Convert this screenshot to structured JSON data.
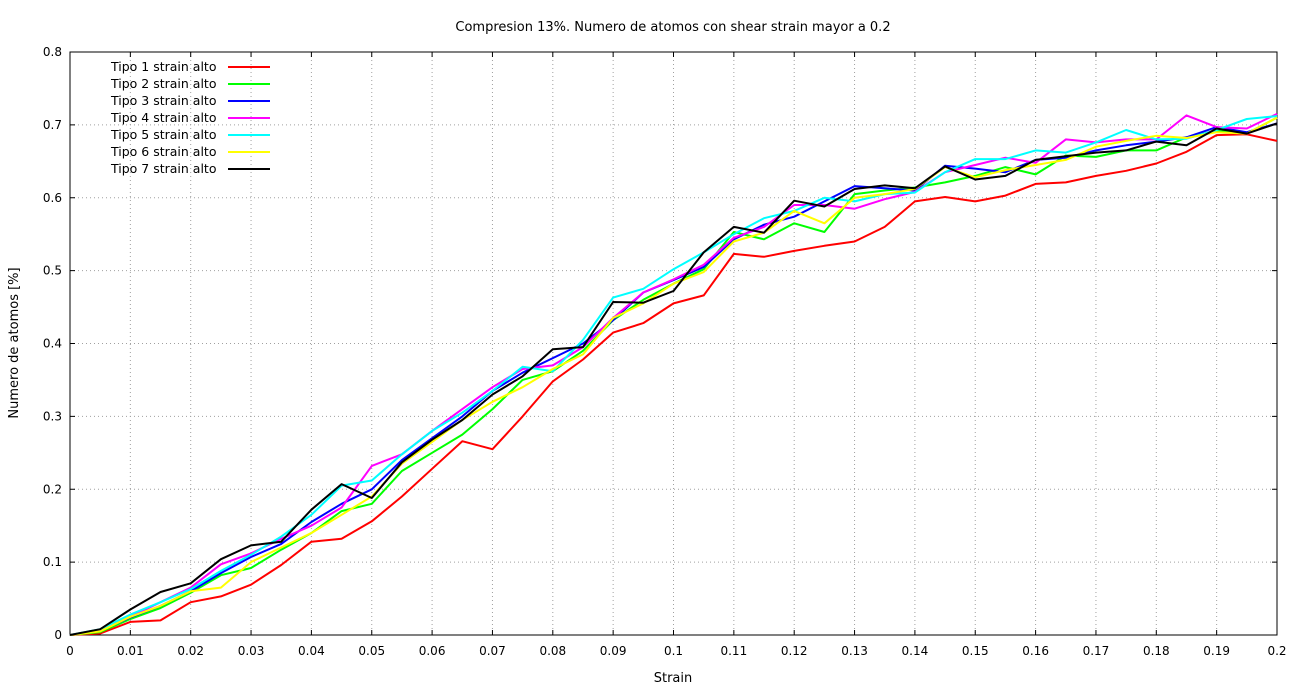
{
  "chart_data": {
    "type": "line",
    "title": "Compresion 13%. Numero de atomos con shear strain mayor a 0.2",
    "xlabel": "Strain",
    "ylabel": "Numero de atomos [%]",
    "xlim": [
      0,
      0.2
    ],
    "ylim": [
      0,
      0.8
    ],
    "grid": true,
    "legend_position": "top-left",
    "x_ticks": [
      "0",
      "0.01",
      "0.02",
      "0.03",
      "0.04",
      "0.05",
      "0.06",
      "0.07",
      "0.08",
      "0.09",
      "0.1",
      "0.11",
      "0.12",
      "0.13",
      "0.14",
      "0.15",
      "0.16",
      "0.17",
      "0.18",
      "0.19",
      "0.2"
    ],
    "y_ticks": [
      "0",
      "0.1",
      "0.2",
      "0.3",
      "0.4",
      "0.5",
      "0.6",
      "0.7",
      "0.8"
    ],
    "x": [
      0,
      0.005,
      0.01,
      0.015,
      0.02,
      0.025,
      0.03,
      0.035,
      0.04,
      0.045,
      0.05,
      0.055,
      0.06,
      0.065,
      0.07,
      0.075,
      0.08,
      0.085,
      0.09,
      0.095,
      0.1,
      0.105,
      0.11,
      0.115,
      0.12,
      0.125,
      0.13,
      0.135,
      0.14,
      0.145,
      0.15,
      0.155,
      0.16,
      0.165,
      0.17,
      0.175,
      0.18,
      0.185,
      0.19,
      0.195,
      0.2
    ],
    "series": [
      {
        "name": "Tipo 1 strain alto",
        "color": "#ff0000",
        "values": [
          0,
          0.002,
          0.018,
          0.02,
          0.045,
          0.053,
          0.069,
          0.096,
          0.128,
          0.132,
          0.156,
          0.19,
          0.228,
          0.266,
          0.255,
          0.3,
          0.348,
          0.378,
          0.415,
          0.428,
          0.455,
          0.466,
          0.523,
          0.519,
          0.527,
          0.534,
          0.54,
          0.56,
          0.595,
          0.601,
          0.595,
          0.603,
          0.619,
          0.621,
          0.63,
          0.637,
          0.647,
          0.663,
          0.686,
          0.687,
          0.678
        ]
      },
      {
        "name": "Tipo 2 strain alto",
        "color": "#00ff00",
        "values": [
          0,
          0.004,
          0.022,
          0.037,
          0.058,
          0.082,
          0.092,
          0.117,
          0.14,
          0.17,
          0.18,
          0.225,
          0.25,
          0.275,
          0.31,
          0.35,
          0.362,
          0.39,
          0.432,
          0.46,
          0.482,
          0.502,
          0.553,
          0.543,
          0.565,
          0.553,
          0.605,
          0.61,
          0.614,
          0.621,
          0.63,
          0.642,
          0.632,
          0.658,
          0.656,
          0.665,
          0.665,
          0.683,
          0.692,
          0.688,
          0.71
        ]
      },
      {
        "name": "Tipo 3 strain alto",
        "color": "#0000ff",
        "values": [
          0,
          0.006,
          0.024,
          0.04,
          0.06,
          0.085,
          0.107,
          0.125,
          0.155,
          0.18,
          0.2,
          0.24,
          0.27,
          0.3,
          0.335,
          0.36,
          0.38,
          0.4,
          0.432,
          0.47,
          0.487,
          0.505,
          0.543,
          0.563,
          0.574,
          0.595,
          0.616,
          0.613,
          0.61,
          0.644,
          0.64,
          0.635,
          0.652,
          0.655,
          0.665,
          0.672,
          0.677,
          0.683,
          0.697,
          0.69,
          0.702
        ]
      },
      {
        "name": "Tipo 4 strain alto",
        "color": "#ff00ff",
        "values": [
          0,
          0.006,
          0.025,
          0.045,
          0.065,
          0.097,
          0.112,
          0.132,
          0.15,
          0.175,
          0.232,
          0.248,
          0.28,
          0.31,
          0.34,
          0.365,
          0.37,
          0.395,
          0.435,
          0.47,
          0.488,
          0.508,
          0.545,
          0.56,
          0.59,
          0.59,
          0.585,
          0.598,
          0.608,
          0.635,
          0.645,
          0.655,
          0.648,
          0.68,
          0.676,
          0.68,
          0.68,
          0.713,
          0.697,
          0.695,
          0.715
        ]
      },
      {
        "name": "Tipo 5 strain alto",
        "color": "#00ffff",
        "values": [
          0,
          0.008,
          0.028,
          0.045,
          0.063,
          0.088,
          0.11,
          0.135,
          0.165,
          0.205,
          0.212,
          0.248,
          0.28,
          0.305,
          0.335,
          0.368,
          0.362,
          0.405,
          0.463,
          0.475,
          0.502,
          0.525,
          0.55,
          0.572,
          0.582,
          0.6,
          0.595,
          0.605,
          0.607,
          0.635,
          0.653,
          0.653,
          0.665,
          0.662,
          0.676,
          0.693,
          0.68,
          0.681,
          0.693,
          0.708,
          0.712
        ]
      },
      {
        "name": "Tipo 6 strain alto",
        "color": "#ffff00",
        "values": [
          0,
          0.005,
          0.025,
          0.04,
          0.06,
          0.065,
          0.1,
          0.12,
          0.14,
          0.165,
          0.19,
          0.235,
          0.265,
          0.295,
          0.32,
          0.34,
          0.365,
          0.385,
          0.435,
          0.455,
          0.482,
          0.498,
          0.54,
          0.552,
          0.582,
          0.565,
          0.6,
          0.605,
          0.612,
          0.642,
          0.628,
          0.638,
          0.645,
          0.652,
          0.67,
          0.678,
          0.685,
          0.682,
          0.69,
          0.688,
          0.71
        ]
      },
      {
        "name": "Tipo 7 strain alto",
        "color": "#000000",
        "values": [
          0,
          0.008,
          0.035,
          0.059,
          0.071,
          0.104,
          0.123,
          0.128,
          0.172,
          0.207,
          0.188,
          0.237,
          0.268,
          0.295,
          0.33,
          0.355,
          0.392,
          0.395,
          0.457,
          0.456,
          0.472,
          0.525,
          0.56,
          0.552,
          0.596,
          0.588,
          0.612,
          0.617,
          0.613,
          0.643,
          0.625,
          0.63,
          0.652,
          0.657,
          0.662,
          0.665,
          0.677,
          0.672,
          0.695,
          0.688,
          0.702
        ]
      }
    ]
  }
}
